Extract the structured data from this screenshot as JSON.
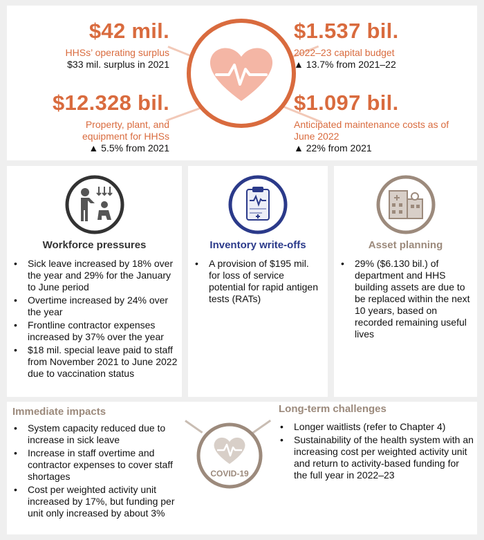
{
  "top": {
    "stat1": {
      "value": "$42 mil.",
      "label": "HHSs’ operating surplus",
      "note": "$33 mil. surplus in 2021"
    },
    "stat2": {
      "value": "$1.537 bil.",
      "label": "2022–23 capital budget",
      "note": "▲ 13.7% from 2021–22"
    },
    "stat3": {
      "value": "$12.328 bil.",
      "label_line1": "Property, plant, and",
      "label_line2": "equipment for HHSs",
      "note": "▲ 5.5% from 2021"
    },
    "stat4": {
      "value": "$1.097 bil.",
      "label_line1": "Anticipated maintenance costs as of",
      "label_line2": "June 2022",
      "note": "▲ 22% from 2021"
    }
  },
  "cards": {
    "workforce": {
      "title": "Workforce pressures",
      "items": [
        "Sick leave increased by 18% over the year and 29% for the January to June period",
        "Overtime increased by 24% over the year",
        "Frontline contractor expenses increased by 37% over the year",
        "$18 mil. special leave paid to staff from November 2021 to June 2022 due to vaccination status"
      ]
    },
    "inventory": {
      "title": "Inventory write-offs",
      "items": [
        "A provision of $195 mil. for loss of service potential for rapid antigen tests (RATs)"
      ]
    },
    "asset": {
      "title": "Asset planning",
      "items": [
        "29% ($6.130 bil.) of department and HHS building assets are due to be replaced within the next 10 years, based on recorded remaining useful lives"
      ]
    }
  },
  "bottom": {
    "immediate": {
      "title": "Immediate impacts",
      "items": [
        "System capacity reduced due to increase in sick leave",
        "Increase in staff overtime and contractor expenses to cover staff shortages",
        "Cost per weighted activity unit increased by 17%, but funding per unit only increased by about 3%"
      ]
    },
    "longterm": {
      "title": "Long-term challenges",
      "items": [
        "Longer waitlists (refer to Chapter 4)",
        "Sustainability of the health system with an increasing cost per weighted activity unit and return to activity-based funding for the full year in 2022–23"
      ]
    },
    "badge": "COVID-19"
  },
  "colors": {
    "accent": "#d96b3e",
    "navy": "#2b3a8a",
    "taupe": "#9c8a7c",
    "dark": "#333333"
  },
  "icons": [
    "heart-pulse-icon",
    "workforce-icon",
    "clipboard-icon",
    "buildings-icon",
    "covid-heart-icon"
  ]
}
